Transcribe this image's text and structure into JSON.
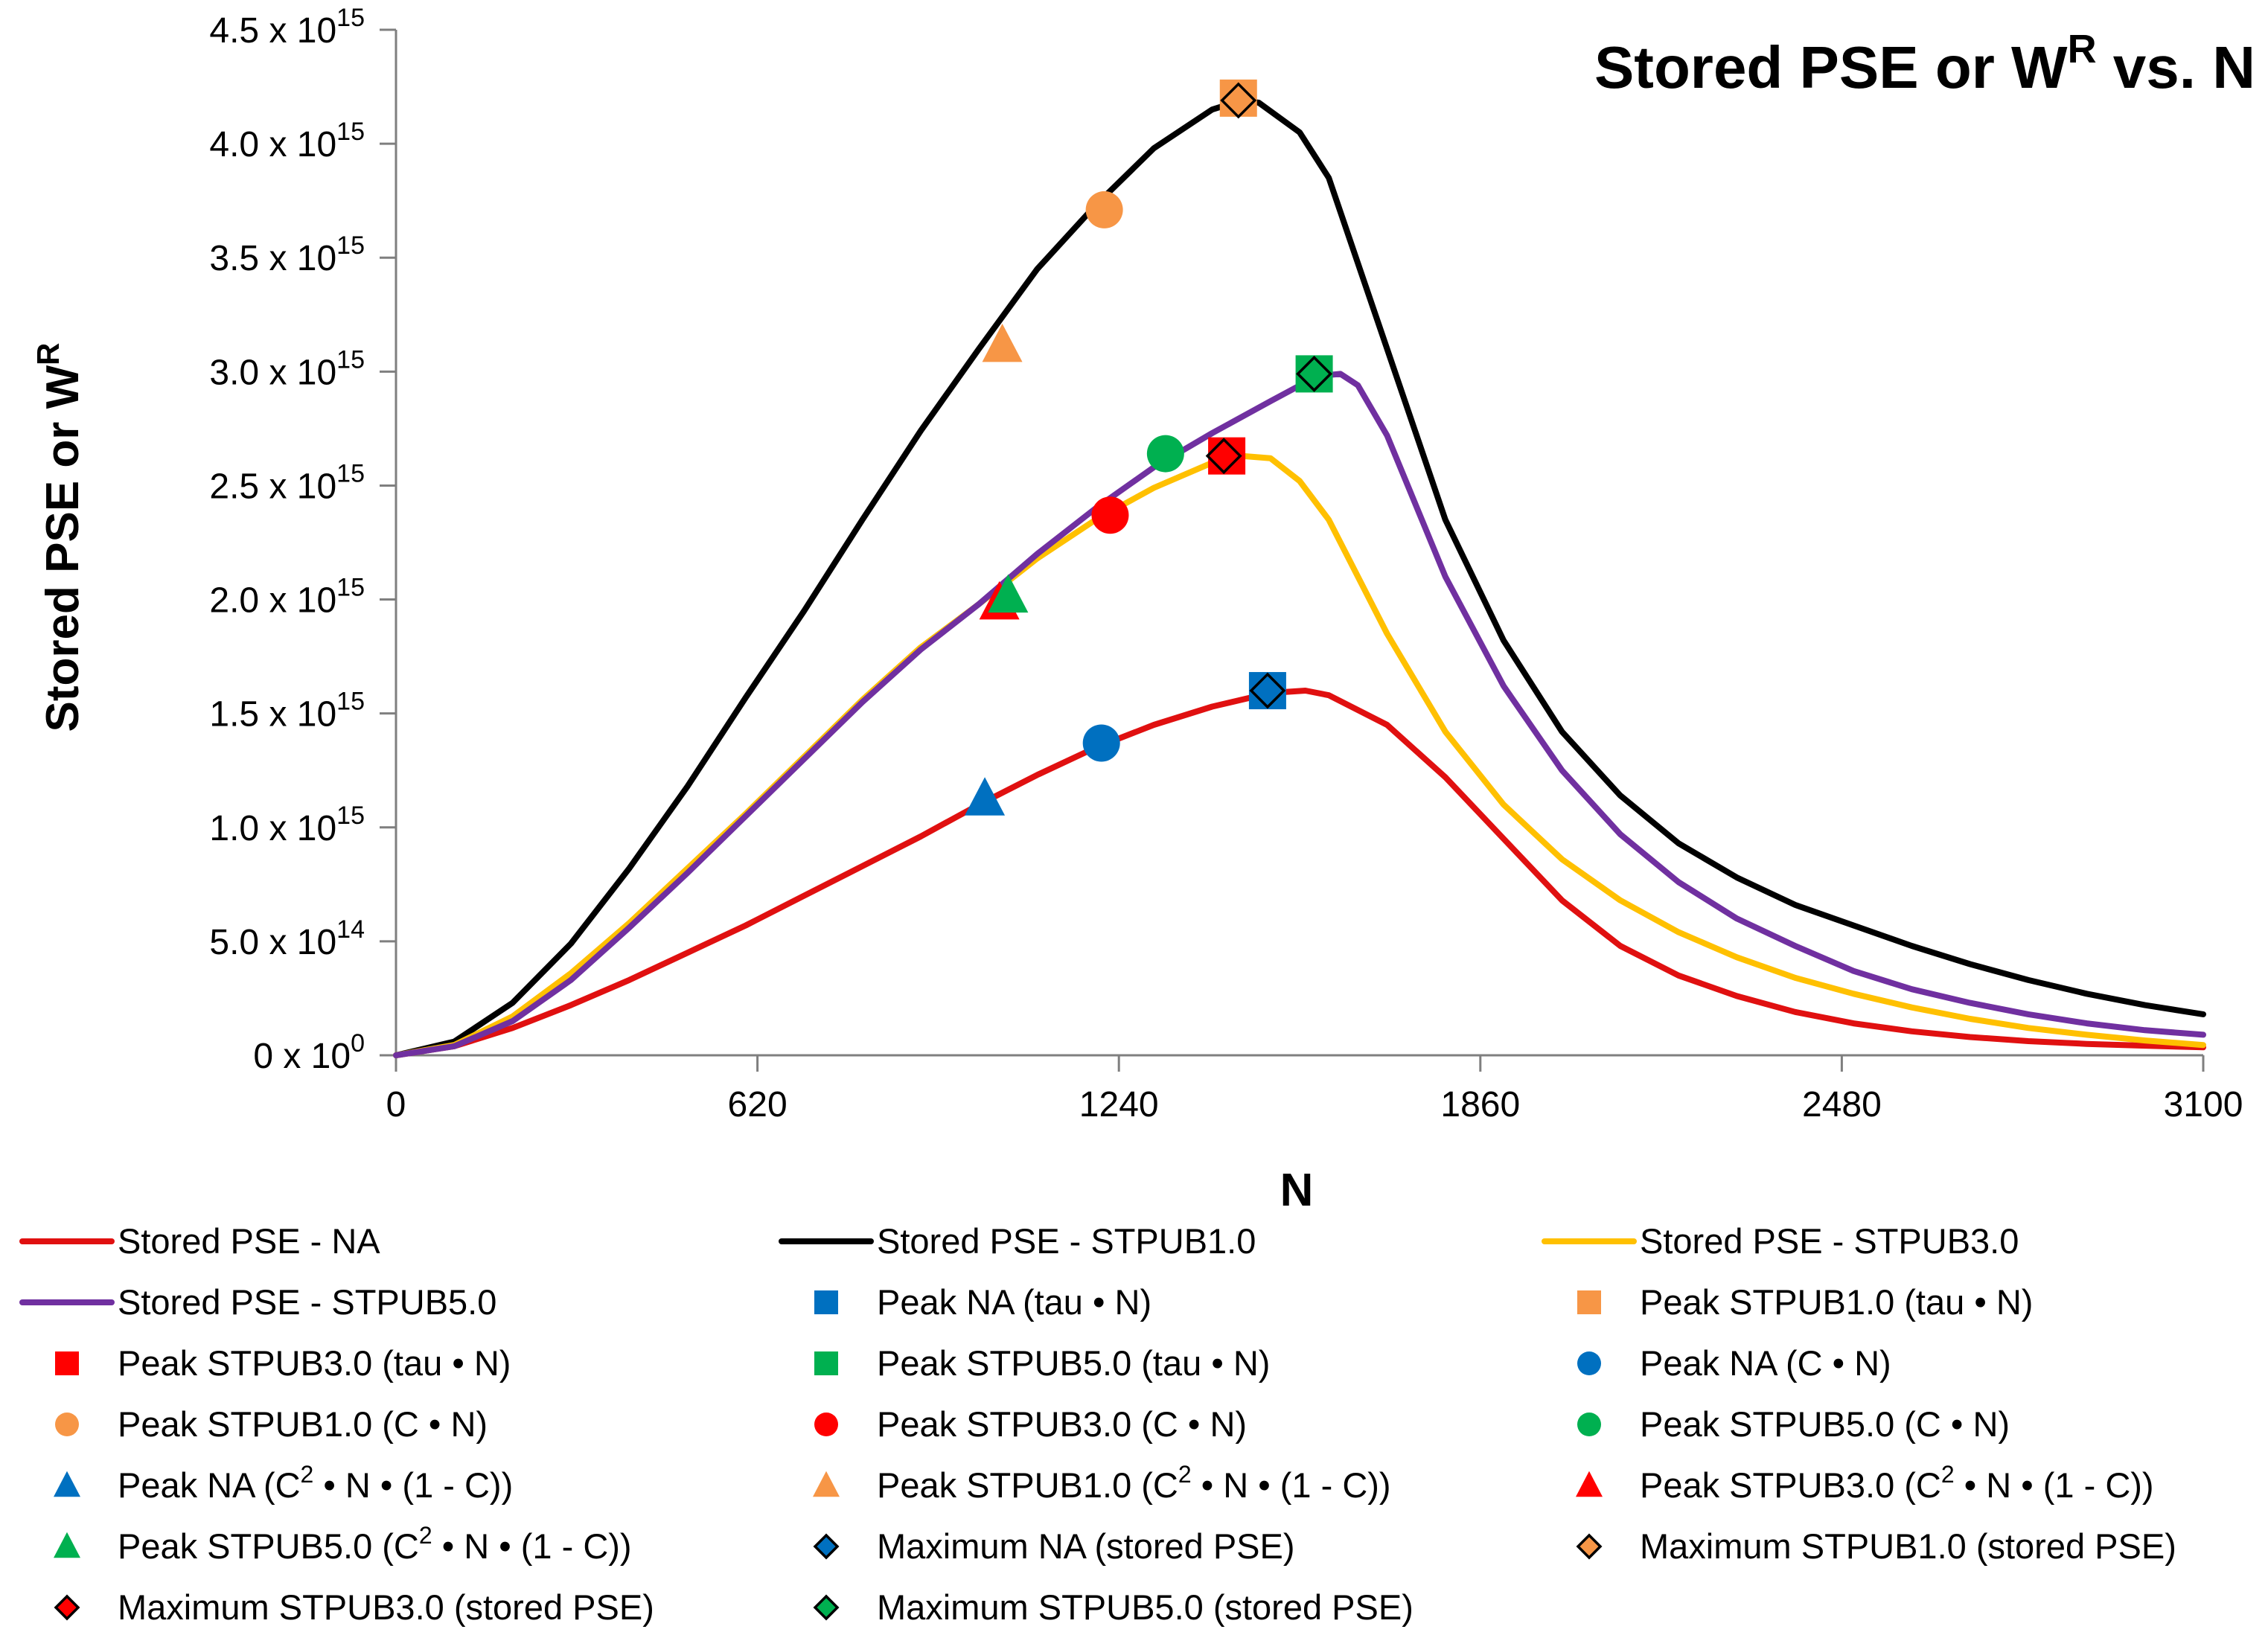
{
  "chart_data": {
    "type": "line",
    "title": "Stored PSE or W",
    "title_sup": "R",
    "title_tail": " vs. N",
    "xlabel": "N",
    "ylabel": "Stored PSE or W",
    "ylabel_sup": "R",
    "xlim": [
      0,
      3100
    ],
    "ylim": [
      0,
      4500000000000000.0
    ],
    "x_ticks": [
      0,
      620,
      1240,
      1860,
      2480,
      3100
    ],
    "y_ticks": [
      {
        "value": 0,
        "base": "0 x 10",
        "exp": "0"
      },
      {
        "value": 500000000000000.0,
        "base": "5.0 x 10",
        "exp": "14"
      },
      {
        "value": 1000000000000000.0,
        "base": "1.0 x 10",
        "exp": "15"
      },
      {
        "value": 1500000000000000.0,
        "base": "1.5 x 10",
        "exp": "15"
      },
      {
        "value": 2000000000000000.0,
        "base": "2.0 x 10",
        "exp": "15"
      },
      {
        "value": 2500000000000000.0,
        "base": "2.5 x 10",
        "exp": "15"
      },
      {
        "value": 3000000000000000.0,
        "base": "3.0 x 10",
        "exp": "15"
      },
      {
        "value": 3500000000000000.0,
        "base": "3.5 x 10",
        "exp": "15"
      },
      {
        "value": 4000000000000000.0,
        "base": "4.0 x 10",
        "exp": "15"
      },
      {
        "value": 4500000000000000.0,
        "base": "4.5 x 10",
        "exp": "15"
      }
    ],
    "series": [
      {
        "name": "Stored PSE - NA",
        "color": "#e01010",
        "x": [
          0,
          100,
          200,
          300,
          400,
          500,
          600,
          700,
          800,
          900,
          1000,
          1100,
          1200,
          1300,
          1400,
          1500,
          1560,
          1600,
          1700,
          1800,
          1900,
          2000,
          2100,
          2200,
          2300,
          2400,
          2500,
          2600,
          2700,
          2800,
          2900,
          3000,
          3100
        ],
        "y": [
          0,
          40000000000000.0,
          120000000000000.0,
          220000000000000.0,
          330000000000000.0,
          450000000000000.0,
          570000000000000.0,
          700000000000000.0,
          830000000000000.0,
          960000000000000.0,
          1100000000000000.0,
          1230000000000000.0,
          1350000000000000.0,
          1450000000000000.0,
          1530000000000000.0,
          1590000000000000.0,
          1600000000000000.0,
          1580000000000000.0,
          1450000000000000.0,
          1220000000000000.0,
          950000000000000.0,
          680000000000000.0,
          480000000000000.0,
          350000000000000.0,
          260000000000000.0,
          190000000000000.0,
          140000000000000.0,
          105000000000000.0,
          80000000000000.0,
          62000000000000.0,
          50000000000000.0,
          42000000000000.0,
          35000000000000.0
        ]
      },
      {
        "name": "Stored PSE - STPUB1.0",
        "color": "#000000",
        "x": [
          0,
          100,
          200,
          300,
          400,
          500,
          600,
          700,
          800,
          900,
          1000,
          1100,
          1200,
          1300,
          1400,
          1450,
          1480,
          1550,
          1600,
          1700,
          1800,
          1900,
          2000,
          2100,
          2200,
          2300,
          2400,
          2500,
          2600,
          2700,
          2800,
          2900,
          3000,
          3100
        ],
        "y": [
          0,
          60000000000000.0,
          230000000000000.0,
          490000000000000.0,
          820000000000000.0,
          1180000000000000.0,
          1570000000000000.0,
          1950000000000000.0,
          2350000000000000.0,
          2740000000000000.0,
          3100000000000000.0,
          3450000000000000.0,
          3730000000000000.0,
          3980000000000000.0,
          4150000000000000.0,
          4190000000000000.0,
          4180000000000000.0,
          4050000000000000.0,
          3850000000000000.0,
          3100000000000000.0,
          2350000000000000.0,
          1820000000000000.0,
          1420000000000000.0,
          1140000000000000.0,
          930000000000000.0,
          780000000000000.0,
          660000000000000.0,
          570000000000000.0,
          480000000000000.0,
          400000000000000.0,
          330000000000000.0,
          270000000000000.0,
          220000000000000.0,
          180000000000000.0
        ]
      },
      {
        "name": "Stored PSE - STPUB3.0",
        "color": "#ffc000",
        "x": [
          0,
          100,
          200,
          300,
          400,
          500,
          600,
          700,
          800,
          900,
          1000,
          1100,
          1200,
          1300,
          1400,
          1450,
          1500,
          1550,
          1600,
          1700,
          1800,
          1900,
          2000,
          2100,
          2200,
          2300,
          2400,
          2500,
          2600,
          2700,
          2800,
          2900,
          3000,
          3100
        ],
        "y": [
          0,
          45000000000000.0,
          170000000000000.0,
          360000000000000.0,
          580000000000000.0,
          820000000000000.0,
          1060000000000000.0,
          1310000000000000.0,
          1560000000000000.0,
          1790000000000000.0,
          1980000000000000.0,
          2180000000000000.0,
          2350000000000000.0,
          2490000000000000.0,
          2600000000000000.0,
          2630000000000000.0,
          2620000000000000.0,
          2520000000000000.0,
          2350000000000000.0,
          1850000000000000.0,
          1420000000000000.0,
          1100000000000000.0,
          860000000000000.0,
          680000000000000.0,
          540000000000000.0,
          430000000000000.0,
          340000000000000.0,
          270000000000000.0,
          210000000000000.0,
          160000000000000.0,
          120000000000000.0,
          90000000000000.0,
          65000000000000.0,
          45000000000000.0
        ]
      },
      {
        "name": "Stored PSE - STPUB5.0",
        "color": "#7030a0",
        "x": [
          0,
          100,
          200,
          300,
          400,
          500,
          600,
          700,
          800,
          900,
          1000,
          1100,
          1200,
          1300,
          1400,
          1500,
          1580,
          1620,
          1650,
          1700,
          1800,
          1900,
          2000,
          2100,
          2200,
          2300,
          2400,
          2500,
          2600,
          2700,
          2800,
          2900,
          3000,
          3100
        ],
        "y": [
          0,
          40000000000000.0,
          150000000000000.0,
          330000000000000.0,
          560000000000000.0,
          800000000000000.0,
          1050000000000000.0,
          1300000000000000.0,
          1550000000000000.0,
          1780000000000000.0,
          1980000000000000.0,
          2200000000000000.0,
          2400000000000000.0,
          2580000000000000.0,
          2730000000000000.0,
          2870000000000000.0,
          2980000000000000.0,
          2990000000000000.0,
          2940000000000000.0,
          2720000000000000.0,
          2100000000000000.0,
          1620000000000000.0,
          1250000000000000.0,
          970000000000000.0,
          760000000000000.0,
          600000000000000.0,
          480000000000000.0,
          370000000000000.0,
          290000000000000.0,
          230000000000000.0,
          180000000000000.0,
          140000000000000.0,
          110000000000000.0,
          90000000000000.0
        ]
      }
    ],
    "markers": [
      {
        "name": "Peak NA (tau • N)",
        "shape": "square",
        "color": "#0070c0",
        "x": 1495,
        "y": 1600000000000000.0
      },
      {
        "name": "Peak STPUB1.0 (tau • N)",
        "shape": "square",
        "color": "#f79646",
        "x": 1445,
        "y": 4200000000000000.0
      },
      {
        "name": "Peak STPUB3.0 (tau • N)",
        "shape": "square",
        "color": "#ff0000",
        "x": 1425,
        "y": 2630000000000000.0
      },
      {
        "name": "Peak STPUB5.0 (tau • N)",
        "shape": "square",
        "color": "#00b050",
        "x": 1575,
        "y": 2990000000000000.0
      },
      {
        "name": "Peak NA (C • N)",
        "shape": "circle",
        "color": "#0070c0",
        "x": 1210,
        "y": 1370000000000000.0
      },
      {
        "name": "Peak STPUB1.0 (C • N)",
        "shape": "circle",
        "color": "#f79646",
        "x": 1215,
        "y": 3710000000000000.0
      },
      {
        "name": "Peak STPUB3.0 (C • N)",
        "shape": "circle",
        "color": "#ff0000",
        "x": 1225,
        "y": 2370000000000000.0
      },
      {
        "name": "Peak STPUB5.0 (C • N)",
        "shape": "circle",
        "color": "#00b050",
        "x": 1320,
        "y": 2640000000000000.0
      },
      {
        "name": "Peak NA (C2 • N • (1 - C))",
        "shape": "triangle",
        "color": "#0070c0",
        "x": 1010,
        "y": 1130000000000000.0
      },
      {
        "name": "Peak STPUB1.0 (C2 • N • (1 - C))",
        "shape": "triangle",
        "color": "#f79646",
        "x": 1040,
        "y": 3120000000000000.0
      },
      {
        "name": "Peak STPUB3.0 (C2 • N • (1 - C))",
        "shape": "triangle",
        "color": "#ff0000",
        "x": 1035,
        "y": 1990000000000000.0
      },
      {
        "name": "Peak STPUB5.0 (C2 • N • (1 - C))",
        "shape": "triangle",
        "color": "#00b050",
        "x": 1050,
        "y": 2020000000000000.0
      },
      {
        "name": "Maximum NA (stored PSE)",
        "shape": "diamond",
        "color": "#0070c0",
        "x": 1495,
        "y": 1600000000000000.0
      },
      {
        "name": "Maximum STPUB1.0 (stored PSE)",
        "shape": "diamond",
        "color": "#f79646",
        "x": 1445,
        "y": 4190000000000000.0
      },
      {
        "name": "Maximum STPUB3.0 (stored PSE)",
        "shape": "diamond",
        "color": "#ff0000",
        "x": 1420,
        "y": 2630000000000000.0
      },
      {
        "name": "Maximum STPUB5.0 (stored PSE)",
        "shape": "diamond",
        "color": "#00b050",
        "x": 1575,
        "y": 2990000000000000.0
      }
    ],
    "legend": {
      "placement": "bottom",
      "columns": 3,
      "entries": [
        {
          "label": "Stored PSE - NA",
          "shape": "line",
          "color": "#e01010"
        },
        {
          "label": "Stored PSE - STPUB1.0",
          "shape": "line",
          "color": "#000000"
        },
        {
          "label": "Stored PSE - STPUB3.0",
          "shape": "line",
          "color": "#ffc000"
        },
        {
          "label": "Stored PSE - STPUB5.0",
          "shape": "line",
          "color": "#7030a0"
        },
        {
          "label": "Peak NA (tau • N)",
          "shape": "square",
          "color": "#0070c0"
        },
        {
          "label": "Peak STPUB1.0 (tau • N)",
          "shape": "square",
          "color": "#f79646"
        },
        {
          "label": "Peak STPUB3.0 (tau • N)",
          "shape": "square",
          "color": "#ff0000"
        },
        {
          "label": "Peak STPUB5.0 (tau • N)",
          "shape": "square",
          "color": "#00b050"
        },
        {
          "label": "Peak NA (C • N)",
          "shape": "circle",
          "color": "#0070c0"
        },
        {
          "label": "Peak STPUB1.0 (C • N)",
          "shape": "circle",
          "color": "#f79646"
        },
        {
          "label": "Peak STPUB3.0 (C • N)",
          "shape": "circle",
          "color": "#ff0000"
        },
        {
          "label": "Peak STPUB5.0 (C • N)",
          "shape": "circle",
          "color": "#00b050"
        },
        {
          "label": "Peak NA (C",
          "sup": "2",
          "tail": " • N • (1 - C))",
          "shape": "triangle",
          "color": "#0070c0"
        },
        {
          "label": "Peak STPUB1.0 (C",
          "sup": "2",
          "tail": " • N • (1 - C))",
          "shape": "triangle",
          "color": "#f79646"
        },
        {
          "label": "Peak STPUB3.0 (C",
          "sup": "2",
          "tail": " • N • (1 - C))",
          "shape": "triangle",
          "color": "#ff0000"
        },
        {
          "label": "Peak STPUB5.0 (C",
          "sup": "2",
          "tail": " • N • (1 - C))",
          "shape": "triangle",
          "color": "#00b050"
        },
        {
          "label": "Maximum NA (stored PSE)",
          "shape": "diamond",
          "color": "#0070c0"
        },
        {
          "label": "Maximum STPUB1.0 (stored PSE)",
          "shape": "diamond",
          "color": "#f79646"
        },
        {
          "label": "Maximum STPUB3.0 (stored PSE)",
          "shape": "diamond",
          "color": "#ff0000"
        },
        {
          "label": "Maximum STPUB5.0 (stored PSE)",
          "shape": "diamond",
          "color": "#00b050"
        }
      ]
    }
  }
}
